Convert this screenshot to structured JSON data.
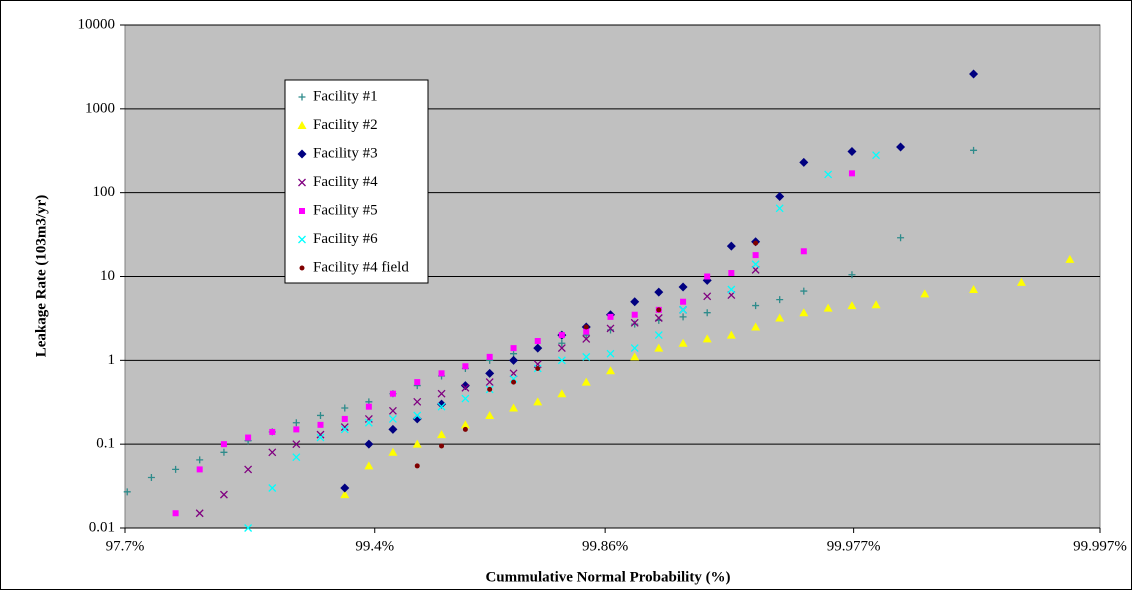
{
  "chart_data": {
    "type": "scatter",
    "x_label": "Cummulative Normal Probability (%)",
    "y_label": "Leakage Rate (103m3/yr)",
    "xscale": "normal-probability",
    "yscale": "log",
    "xlim": [
      97.7,
      99.997
    ],
    "xticks": [
      {
        "value": 97.7,
        "label": "97.7%"
      },
      {
        "value": 99.4,
        "label": "99.4%"
      },
      {
        "value": 99.86,
        "label": "99.86%"
      },
      {
        "value": 99.977,
        "label": "99.977%"
      },
      {
        "value": 99.997,
        "label": "99.997%"
      }
    ],
    "ylim": [
      0.01,
      10000
    ],
    "yticks": [
      0.01,
      0.1,
      1,
      10,
      100,
      1000,
      10000
    ],
    "grid": true,
    "legend": "upper-left",
    "series": [
      {
        "name": "Facility #1",
        "color": "#2e8b8b",
        "marker": "plus",
        "x": [
          97.725,
          97.982,
          98.214,
          98.422,
          98.61,
          98.778,
          98.928,
          99.061,
          99.18,
          99.286,
          99.379,
          99.461,
          99.534,
          99.598,
          99.653,
          99.702,
          99.744,
          99.781,
          99.813,
          99.841,
          99.865,
          99.8856,
          99.9032,
          99.9184,
          99.9313,
          99.9517,
          99.9596,
          99.9663,
          99.9767,
          99.9841,
          99.9912
        ],
        "values": [
          0.027,
          0.04,
          0.05,
          0.065,
          0.08,
          0.11,
          0.14,
          0.18,
          0.22,
          0.27,
          0.32,
          0.4,
          0.5,
          0.65,
          0.8,
          1.0,
          1.2,
          1.4,
          1.6,
          2.0,
          2.3,
          2.7,
          3.0,
          3.3,
          3.7,
          4.5,
          5.3,
          6.7,
          10.5,
          29,
          320
        ]
      },
      {
        "name": "Facility #2",
        "color": "#ffff00",
        "marker": "triangle",
        "x": [
          99.286,
          99.379,
          99.461,
          99.534,
          99.598,
          99.653,
          99.702,
          99.744,
          99.781,
          99.813,
          99.841,
          99.865,
          99.8856,
          99.9032,
          99.9184,
          99.9313,
          99.9423,
          99.9517,
          99.9596,
          99.9663,
          99.972,
          99.9767,
          99.9807,
          99.9869,
          99.9912,
          99.9941,
          99.9961
        ],
        "values": [
          0.025,
          0.055,
          0.08,
          0.1,
          0.13,
          0.17,
          0.22,
          0.27,
          0.32,
          0.4,
          0.55,
          0.75,
          1.1,
          1.4,
          1.6,
          1.8,
          2.0,
          2.5,
          3.2,
          3.7,
          4.2,
          4.5,
          4.6,
          6.2,
          7.0,
          8.5,
          16
        ]
      },
      {
        "name": "Facility #3",
        "color": "#000080",
        "marker": "diamond",
        "x": [
          99.286,
          99.379,
          99.461,
          99.534,
          99.598,
          99.653,
          99.702,
          99.744,
          99.781,
          99.813,
          99.841,
          99.865,
          99.8856,
          99.9032,
          99.9184,
          99.9313,
          99.9423,
          99.9517,
          99.9596,
          99.9663,
          99.9767,
          99.9841,
          99.9912
        ],
        "values": [
          0.03,
          0.1,
          0.15,
          0.2,
          0.3,
          0.5,
          0.7,
          1.0,
          1.4,
          2.0,
          2.5,
          3.5,
          5,
          6.5,
          7.5,
          9,
          23,
          26,
          90,
          230,
          310,
          350,
          2600
        ]
      },
      {
        "name": "Facility #4",
        "color": "#800080",
        "marker": "cross",
        "x": [
          98.422,
          98.61,
          98.778,
          98.928,
          99.061,
          99.18,
          99.286,
          99.379,
          99.461,
          99.534,
          99.598,
          99.653,
          99.702,
          99.744,
          99.781,
          99.813,
          99.841,
          99.865,
          99.8856,
          99.9032,
          99.9184,
          99.9313,
          99.9423,
          99.9517
        ],
        "values": [
          0.015,
          0.025,
          0.05,
          0.08,
          0.1,
          0.13,
          0.16,
          0.2,
          0.25,
          0.32,
          0.4,
          0.47,
          0.55,
          0.7,
          0.9,
          1.4,
          1.8,
          2.4,
          2.8,
          3.2,
          4,
          5.8,
          6,
          12
        ]
      },
      {
        "name": "Facility #5",
        "color": "#ff00ff",
        "marker": "square",
        "x": [
          98.214,
          98.422,
          98.61,
          98.778,
          98.928,
          99.061,
          99.18,
          99.286,
          99.379,
          99.461,
          99.534,
          99.598,
          99.653,
          99.702,
          99.744,
          99.781,
          99.813,
          99.841,
          99.865,
          99.8856,
          99.9032,
          99.9184,
          99.9313,
          99.9423,
          99.9517,
          99.9663,
          99.9767
        ],
        "values": [
          0.015,
          0.05,
          0.1,
          0.12,
          0.14,
          0.15,
          0.17,
          0.2,
          0.28,
          0.4,
          0.55,
          0.7,
          0.85,
          1.1,
          1.4,
          1.7,
          2.0,
          2.2,
          3.3,
          3.5,
          4.0,
          5,
          10,
          11,
          18,
          20,
          170
        ]
      },
      {
        "name": "Facility #6",
        "color": "#00ffff",
        "marker": "cross",
        "x": [
          98.778,
          98.928,
          99.061,
          99.18,
          99.286,
          99.379,
          99.461,
          99.534,
          99.598,
          99.653,
          99.702,
          99.744,
          99.781,
          99.813,
          99.841,
          99.865,
          99.8856,
          99.9032,
          99.9184,
          99.9423,
          99.9517,
          99.9596,
          99.972,
          99.9807
        ],
        "values": [
          0.01,
          0.03,
          0.07,
          0.12,
          0.15,
          0.18,
          0.2,
          0.22,
          0.28,
          0.35,
          0.45,
          0.6,
          0.8,
          1.0,
          1.1,
          1.2,
          1.4,
          2.0,
          4,
          7,
          14,
          65,
          165,
          280
        ]
      },
      {
        "name": "Facility #4 field",
        "color": "#800000",
        "marker": "circle",
        "x": [
          99.534,
          99.598,
          99.653,
          99.702,
          99.744,
          99.781,
          99.841,
          99.9032,
          99.9517
        ],
        "values": [
          0.055,
          0.095,
          0.15,
          0.45,
          0.55,
          0.8,
          2.5,
          4,
          25
        ]
      }
    ]
  }
}
